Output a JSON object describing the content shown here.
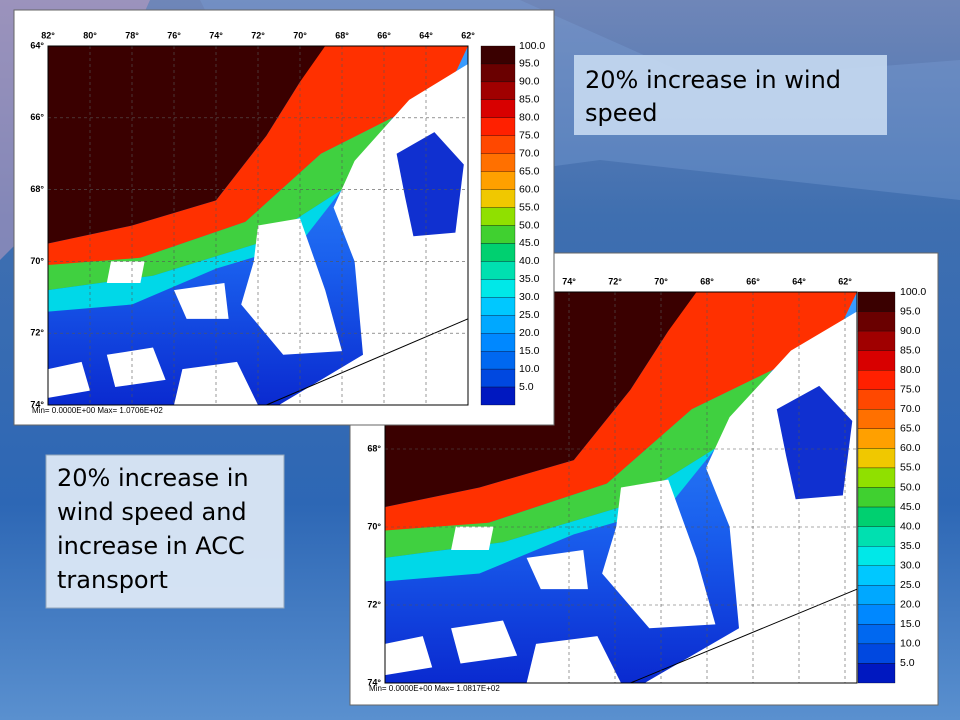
{
  "text_boxes": [
    {
      "lines": [
        "20% increase in wind",
        "speed"
      ]
    },
    {
      "lines": [
        "20% increase in",
        "wind speed and",
        "increase in ACC",
        "transport"
      ]
    }
  ],
  "maps": [
    {
      "lon_labels": [
        "82°",
        "80°",
        "78°",
        "76°",
        "74°",
        "72°",
        "70°",
        "68°",
        "66°",
        "64°",
        "62°"
      ],
      "lat_labels": [
        "64°",
        "66°",
        "68°",
        "70°",
        "72°",
        "74°"
      ],
      "colorbar_labels": [
        "100.0",
        "95.0",
        "90.0",
        "85.0",
        "80.0",
        "75.0",
        "70.0",
        "65.0",
        "60.0",
        "55.0",
        "50.0",
        "45.0",
        "40.0",
        "35.0",
        "30.0",
        "25.0",
        "20.0",
        "15.0",
        "10.0",
        "5.0"
      ],
      "stats": "Min= 0.0000E+00  Max= 1.0706E+02"
    },
    {
      "lon_labels": [
        "74°",
        "72°",
        "70°",
        "68°",
        "66°",
        "64°",
        "62°"
      ],
      "lat_labels": [
        "68°",
        "70°",
        "72°",
        "74°"
      ],
      "colorbar_labels": [
        "100.0",
        "95.0",
        "90.0",
        "85.0",
        "80.0",
        "75.0",
        "70.0",
        "65.0",
        "60.0",
        "55.0",
        "50.0",
        "45.0",
        "40.0",
        "35.0",
        "30.0",
        "25.0",
        "20.0",
        "15.0",
        "10.0",
        "5.0"
      ],
      "stats": "Min= 0.0000E+00  Max= 1.0817E+02"
    }
  ]
}
